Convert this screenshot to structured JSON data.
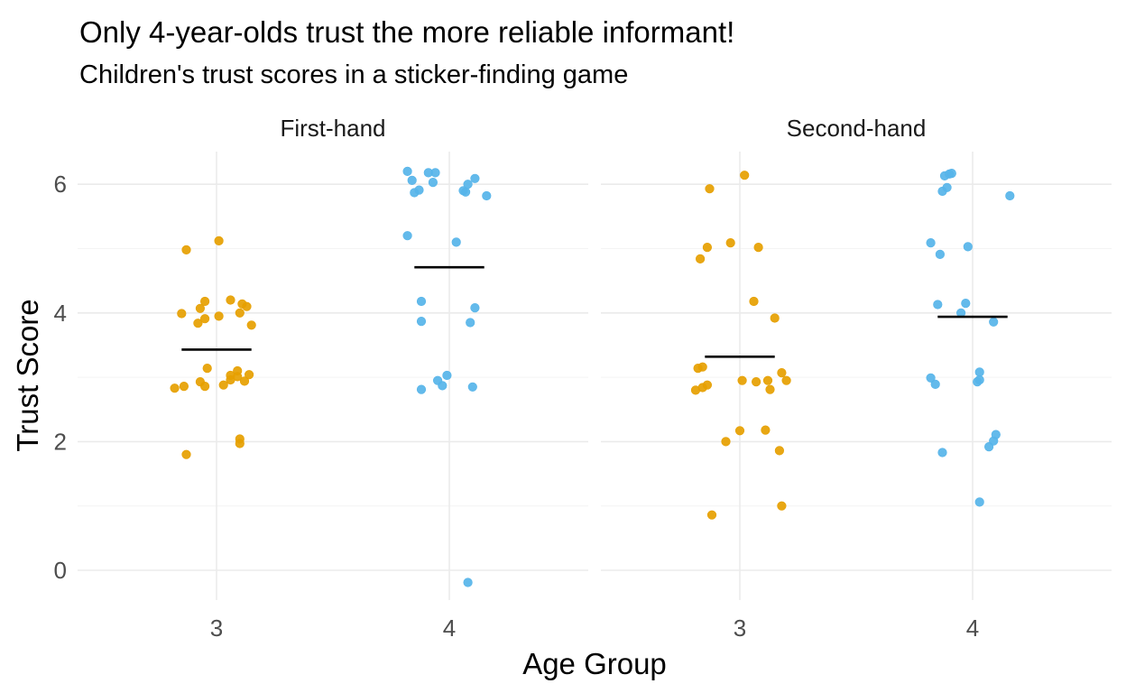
{
  "chart_data": {
    "type": "scatter",
    "title": "Only 4-year-olds trust the more reliable informant!",
    "subtitle": "Children's trust scores in a sticker-finding game",
    "xlabel": "Age Group",
    "ylabel": "Trust Score",
    "ylim": [
      -0.45,
      6.5
    ],
    "yticks": [
      0,
      2,
      4,
      6
    ],
    "grid": true,
    "legend": "none",
    "categories": [
      "3",
      "4"
    ],
    "colors": {
      "3": "#E69F00",
      "4": "#56B4E9",
      "mean": "#000000"
    },
    "facets": [
      {
        "label": "First-hand",
        "groups": [
          {
            "x": "3",
            "mean": 3.43,
            "points": [
              [
                -0.18,
                2.83
              ],
              [
                -0.14,
                2.86
              ],
              [
                -0.15,
                3.99
              ],
              [
                -0.13,
                4.98
              ],
              [
                -0.13,
                1.8
              ],
              [
                -0.08,
                3.84
              ],
              [
                -0.07,
                4.07
              ],
              [
                -0.07,
                2.93
              ],
              [
                -0.05,
                3.91
              ],
              [
                -0.05,
                4.18
              ],
              [
                -0.05,
                2.86
              ],
              [
                -0.04,
                3.14
              ],
              [
                0.01,
                3.95
              ],
              [
                0.01,
                5.12
              ],
              [
                0.03,
                2.88
              ],
              [
                0.06,
                2.96
              ],
              [
                0.06,
                3.03
              ],
              [
                0.06,
                4.2
              ],
              [
                0.09,
                3.1
              ],
              [
                0.09,
                3.01
              ],
              [
                0.1,
                4.0
              ],
              [
                0.1,
                2.04
              ],
              [
                0.1,
                1.97
              ],
              [
                0.11,
                4.14
              ],
              [
                0.12,
                2.94
              ],
              [
                0.13,
                4.1
              ],
              [
                0.14,
                3.04
              ],
              [
                0.15,
                3.81
              ]
            ]
          },
          {
            "x": "4",
            "mean": 4.71,
            "points": [
              [
                -0.18,
                6.2
              ],
              [
                -0.16,
                6.06
              ],
              [
                -0.18,
                5.2
              ],
              [
                -0.15,
                5.87
              ],
              [
                -0.13,
                5.91
              ],
              [
                -0.12,
                2.81
              ],
              [
                -0.12,
                4.18
              ],
              [
                -0.12,
                3.87
              ],
              [
                -0.09,
                6.18
              ],
              [
                -0.07,
                6.03
              ],
              [
                -0.06,
                6.18
              ],
              [
                -0.05,
                2.95
              ],
              [
                -0.03,
                2.87
              ],
              [
                -0.01,
                3.03
              ],
              [
                0.03,
                5.1
              ],
              [
                0.06,
                5.9
              ],
              [
                0.07,
                5.88
              ],
              [
                0.08,
                6.0
              ],
              [
                0.08,
                -0.19
              ],
              [
                0.09,
                3.85
              ],
              [
                0.1,
                2.85
              ],
              [
                0.11,
                6.09
              ],
              [
                0.11,
                4.08
              ],
              [
                0.16,
                5.82
              ]
            ]
          }
        ]
      },
      {
        "label": "Second-hand",
        "groups": [
          {
            "x": "3",
            "mean": 3.32,
            "points": [
              [
                -0.19,
                2.8
              ],
              [
                -0.18,
                3.14
              ],
              [
                -0.16,
                3.16
              ],
              [
                -0.17,
                4.84
              ],
              [
                -0.16,
                2.84
              ],
              [
                -0.14,
                2.88
              ],
              [
                -0.14,
                5.02
              ],
              [
                -0.13,
                5.93
              ],
              [
                -0.12,
                0.86
              ],
              [
                -0.06,
                2.0
              ],
              [
                -0.04,
                5.09
              ],
              [
                0.0,
                2.17
              ],
              [
                0.01,
                2.95
              ],
              [
                0.02,
                6.14
              ],
              [
                0.06,
                4.18
              ],
              [
                0.07,
                2.93
              ],
              [
                0.08,
                5.02
              ],
              [
                0.11,
                2.18
              ],
              [
                0.12,
                2.95
              ],
              [
                0.13,
                2.81
              ],
              [
                0.15,
                3.92
              ],
              [
                0.17,
                1.86
              ],
              [
                0.18,
                3.07
              ],
              [
                0.18,
                1.0
              ],
              [
                0.2,
                2.95
              ]
            ]
          },
          {
            "x": "4",
            "mean": 3.94,
            "points": [
              [
                -0.18,
                5.09
              ],
              [
                -0.18,
                2.99
              ],
              [
                -0.16,
                2.89
              ],
              [
                -0.15,
                4.13
              ],
              [
                -0.14,
                4.91
              ],
              [
                -0.13,
                5.89
              ],
              [
                -0.13,
                1.83
              ],
              [
                -0.12,
                6.13
              ],
              [
                -0.11,
                5.95
              ],
              [
                -0.1,
                6.16
              ],
              [
                -0.09,
                6.17
              ],
              [
                -0.05,
                4.0
              ],
              [
                -0.03,
                4.15
              ],
              [
                -0.02,
                5.03
              ],
              [
                0.02,
                2.93
              ],
              [
                0.03,
                2.96
              ],
              [
                0.03,
                1.06
              ],
              [
                0.03,
                3.08
              ],
              [
                0.07,
                1.92
              ],
              [
                0.09,
                3.86
              ],
              [
                0.09,
                2.01
              ],
              [
                0.1,
                2.11
              ],
              [
                0.16,
                5.82
              ]
            ]
          }
        ]
      }
    ]
  }
}
